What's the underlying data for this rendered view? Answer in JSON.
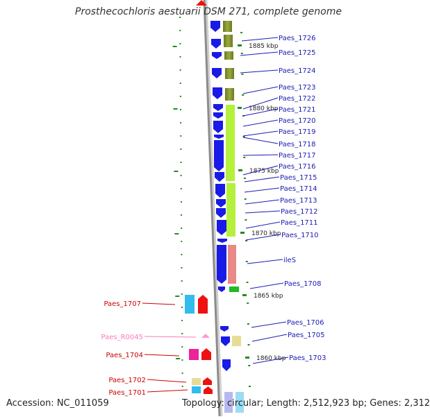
{
  "title": "Prosthecochloris aestuarii DSM 271, complete genome",
  "footer": {
    "accession": "Accession: NC_011059",
    "topology": "Topology: circular; Length: 2,512,923 bp; Genes: 2,312"
  },
  "colors": {
    "cds_forward": "#1a1ae6",
    "cog_olive": "#7f8f2a",
    "cog_lime": "#b4f03c",
    "cog_pink": "#e88888",
    "cog_green": "#22bb22",
    "cog_cyan": "#33bbee",
    "cds_reverse": "#ee1111",
    "cog_magenta": "#ee2299",
    "cog_khaki": "#e6dc96",
    "trna_pink": "#ff99cc",
    "label_forward": "#1a1ab4",
    "label_reverse": "#cc0000",
    "label_rna": "#ff77bb",
    "backbone": "#8c8c8c",
    "tick": "#228b22"
  },
  "scale_marks": [
    {
      "label": "1885 kbp"
    },
    {
      "label": "1880 kbp"
    },
    {
      "label": "1875 kbp"
    },
    {
      "label": "1870 kbp"
    },
    {
      "label": "1865 kbp"
    },
    {
      "label": "1860 kbp"
    }
  ],
  "genes_forward": [
    {
      "label": "Paes_1726"
    },
    {
      "label": "Paes_1725"
    },
    {
      "label": "Paes_1724"
    },
    {
      "label": "Paes_1723"
    },
    {
      "label": "Paes_1722"
    },
    {
      "label": "Paes_1721"
    },
    {
      "label": "Paes_1720"
    },
    {
      "label": "Paes_1719"
    },
    {
      "label": "Paes_1718"
    },
    {
      "label": "Paes_1717"
    },
    {
      "label": "Paes_1716"
    },
    {
      "label": "Paes_1715"
    },
    {
      "label": "Paes_1714"
    },
    {
      "label": "Paes_1713"
    },
    {
      "label": "Paes_1712"
    },
    {
      "label": "Paes_1711"
    },
    {
      "label": "Paes_1710"
    },
    {
      "label": "ileS"
    },
    {
      "label": "Paes_1708"
    },
    {
      "label": "Paes_1706"
    },
    {
      "label": "Paes_1705"
    },
    {
      "label": "Paes_1703"
    }
  ],
  "genes_reverse": [
    {
      "label": "Paes_1707"
    },
    {
      "label": "Paes_R0045"
    },
    {
      "label": "Paes_1704"
    },
    {
      "label": "Paes_1702"
    },
    {
      "label": "Paes_1701"
    }
  ]
}
